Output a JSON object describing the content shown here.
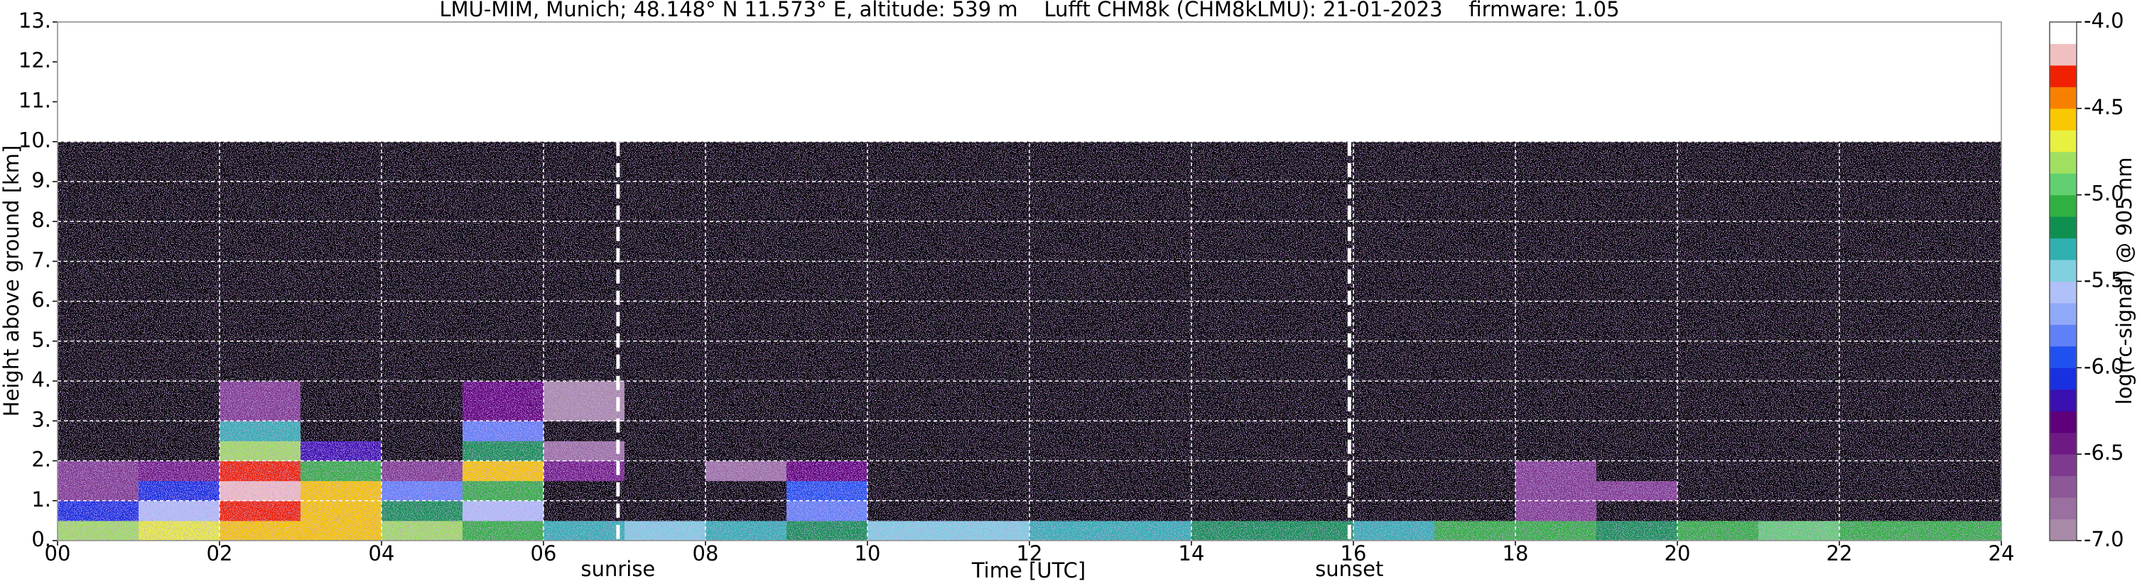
{
  "chart_data": {
    "type": "heatmap",
    "title": "LMU-MIM, Munich; 48.148° N 11.573° E, altitude: 539 m    Lufft CHM8k (CHM8kLMU): 21-01-2023    firmware: 1.05",
    "x_label": "Time [UTC]",
    "y_label": "Height above ground [km]",
    "colorbar_label": "log(rc-signal) @ 905 nm",
    "xlim": [
      0,
      24
    ],
    "ylim": [
      0,
      13
    ],
    "xticks": [
      {
        "value": 0,
        "label": "00"
      },
      {
        "value": 2,
        "label": "02"
      },
      {
        "value": 4,
        "label": "04"
      },
      {
        "value": 6,
        "label": "06"
      },
      {
        "value": 8,
        "label": "08"
      },
      10,
      12,
      14,
      16,
      18,
      20,
      22,
      24
    ],
    "yticks": [
      {
        "value": 0,
        "label": "0."
      },
      {
        "value": 1,
        "label": "1."
      },
      {
        "value": 2,
        "label": "2."
      },
      {
        "value": 3,
        "label": "3."
      },
      {
        "value": 4,
        "label": "4."
      },
      {
        "value": 5,
        "label": "5."
      },
      {
        "value": 6,
        "label": "6."
      },
      {
        "value": 7,
        "label": "7."
      },
      {
        "value": 8,
        "label": "8."
      },
      {
        "value": 9,
        "label": "9."
      },
      {
        "value": 10,
        "label": "10."
      },
      {
        "value": 11,
        "label": "11."
      },
      {
        "value": 12,
        "label": "12."
      },
      {
        "value": 13,
        "label": "13."
      }
    ],
    "grid": true,
    "annotations": [
      {
        "x": 6.92,
        "text": "sunrise"
      },
      {
        "x": 15.95,
        "text": "sunset"
      }
    ],
    "x_bins": [
      0,
      1,
      2,
      3,
      4,
      5,
      6,
      7,
      8,
      9,
      10,
      11,
      12,
      13,
      14,
      15,
      16,
      17,
      18,
      19,
      20,
      21,
      22,
      23,
      24
    ],
    "y_bins": [
      0,
      0.5,
      1,
      1.5,
      2,
      2.5,
      3,
      4,
      6,
      8,
      10
    ],
    "z": [
      [
        -4.8,
        -4.7,
        -4.5,
        -4.6,
        -4.8,
        -5.0,
        -5.3,
        -5.4,
        -5.3,
        -5.2,
        -5.4,
        -5.4,
        -5.3,
        -5.3,
        -5.2,
        -5.2,
        -5.3,
        -5.0,
        -5.1,
        -5.2,
        -5.0,
        -4.9,
        -5.0,
        -5.1
      ],
      [
        -6.0,
        -5.5,
        -4.3,
        -4.5,
        -5.2,
        -5.5,
        -7.2,
        -7.2,
        -7.2,
        -5.8,
        -7.2,
        -7.2,
        -7.2,
        -7.2,
        -7.2,
        -7.2,
        -7.2,
        -7.2,
        -6.6,
        -7.2,
        -7.2,
        -7.2,
        -7.2,
        -7.2
      ],
      [
        -6.5,
        -6.0,
        -4.2,
        -4.6,
        -5.8,
        -5.0,
        -7.2,
        -7.2,
        -7.2,
        -5.9,
        -7.2,
        -7.2,
        -7.2,
        -7.2,
        -7.2,
        -7.2,
        -7.2,
        -7.2,
        -6.5,
        -6.6,
        -7.2,
        -7.2,
        -7.2,
        -7.2
      ],
      [
        -6.6,
        -6.4,
        -4.3,
        -5.0,
        -6.5,
        -4.6,
        -6.4,
        -7.2,
        -6.8,
        -6.3,
        -7.2,
        -7.2,
        -7.2,
        -7.2,
        -7.2,
        -7.2,
        -7.2,
        -7.2,
        -6.6,
        -7.2,
        -7.2,
        -7.2,
        -7.2,
        -7.2
      ],
      [
        -7.2,
        -7.2,
        -4.8,
        -6.2,
        -7.2,
        -5.2,
        -6.8,
        -7.2,
        -7.2,
        -7.2,
        -7.2,
        -7.2,
        -7.2,
        -7.2,
        -7.2,
        -7.2,
        -7.2,
        -7.2,
        -7.2,
        -7.2,
        -7.2,
        -7.2,
        -7.2,
        -7.2
      ],
      [
        -7.2,
        -7.2,
        -5.3,
        -7.2,
        -7.2,
        -5.8,
        -7.2,
        -7.2,
        -7.2,
        -7.2,
        -7.2,
        -7.2,
        -7.2,
        -7.2,
        -7.2,
        -7.2,
        -7.2,
        -7.2,
        -7.2,
        -7.2,
        -7.2,
        -7.2,
        -7.2,
        -7.2
      ],
      [
        -7.2,
        -7.2,
        -6.6,
        -7.2,
        -7.2,
        -6.3,
        -6.9,
        -7.2,
        -7.2,
        -7.2,
        -7.2,
        -7.2,
        -7.2,
        -7.2,
        -7.2,
        -7.2,
        -7.2,
        -7.2,
        -7.2,
        -7.2,
        -7.2,
        -7.2,
        -7.2,
        -7.2
      ],
      [
        -7.2,
        -7.2,
        -7.2,
        -7.2,
        -7.2,
        -7.2,
        -7.2,
        -7.2,
        -7.2,
        -7.2,
        -7.2,
        -7.2,
        -7.2,
        -7.2,
        -7.2,
        -7.2,
        -7.2,
        -7.2,
        -7.2,
        -7.2,
        -7.2,
        -7.2,
        -7.2,
        -7.2
      ],
      [
        -7.2,
        -7.2,
        -7.2,
        -7.2,
        -7.2,
        -7.2,
        -7.2,
        -7.2,
        -7.2,
        -7.2,
        -7.2,
        -7.2,
        -7.2,
        -7.2,
        -7.2,
        -7.2,
        -7.2,
        -7.2,
        -7.2,
        -7.2,
        -7.2,
        -7.2,
        -7.2,
        -7.2
      ],
      [
        -7.2,
        -7.2,
        -7.2,
        -7.2,
        -7.2,
        -7.2,
        -7.2,
        -7.2,
        -7.2,
        -7.2,
        -7.2,
        -7.2,
        -7.2,
        -7.2,
        -7.2,
        -7.2,
        -7.2,
        -7.2,
        -7.2,
        -7.2,
        -7.2,
        -7.2,
        -7.2,
        -7.2
      ]
    ],
    "under_color": "#000000",
    "colorbar": {
      "bounds": [
        -7,
        -6.875,
        -6.75,
        -6.625,
        -6.5,
        -6.375,
        -6.25,
        -6.125,
        -6,
        -5.875,
        -5.75,
        -5.625,
        -5.5,
        -5.375,
        -5.25,
        -5.125,
        -5,
        -4.875,
        -4.75,
        -4.625,
        -4.5,
        -4.375,
        -4.25,
        -4.125,
        -4
      ],
      "colors": [
        "#a88aa8",
        "#9a70a0",
        "#8c5898",
        "#7e3a8e",
        "#6e1a84",
        "#5e007a",
        "#3a10b0",
        "#1830e0",
        "#2050f0",
        "#6080f8",
        "#90a8f8",
        "#b0c0f8",
        "#80d0e0",
        "#30b0b0",
        "#109050",
        "#30b040",
        "#60d070",
        "#a0e060",
        "#e8f040",
        "#f8c800",
        "#f88000",
        "#f02000",
        "#f0c0c0",
        "#ffffff"
      ],
      "ticks": [
        {
          "value": -4,
          "label": "-4.0"
        },
        -4.5,
        {
          "value": -5,
          "label": "-5.0"
        },
        -5.5,
        {
          "value": -6,
          "label": "-6.0"
        },
        -6.5,
        {
          "value": -7,
          "label": "-7.0"
        }
      ]
    }
  }
}
